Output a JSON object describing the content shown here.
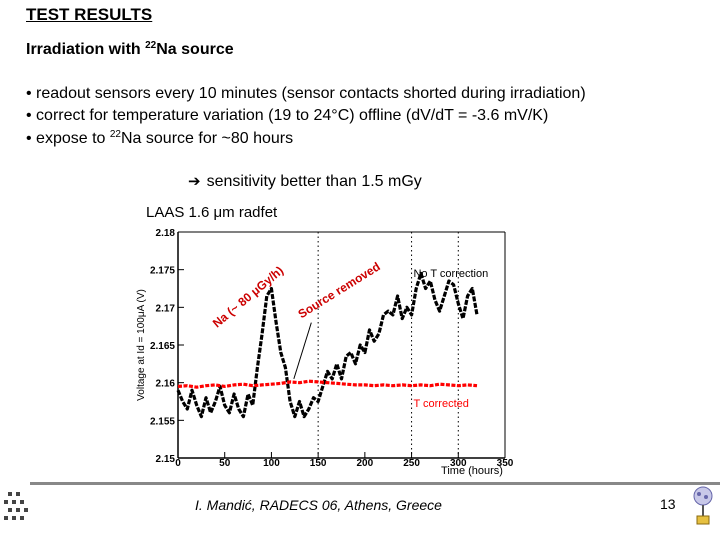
{
  "slide": {
    "title": "TEST RESULTS",
    "subtitle_prefix": "Irradiation with ",
    "subtitle_sup": "22",
    "subtitle_suffix": "Na source",
    "bullets": [
      "• readout sensors every 10 minutes (sensor contacts shorted during irradiation)",
      "• correct for temperature variation (19 to 24°C) offline (dV/dT = -3.6 mV/K)",
      "• expose to "
    ],
    "bullet3_sup": "22",
    "bullet3_suffix": "Na source for ~80 hours",
    "conclusion": "sensitivity better than 1.5 mGy",
    "chart_caption": "LAAS 1.6 μm radfet",
    "footer": "I. Mandić, RADECS 06, Athens, Greece",
    "page_number": "13"
  },
  "chart_data": {
    "type": "line",
    "title": "LAAS 1.6 μm radfet",
    "xlabel": "Time (hours)",
    "ylabel": "Voltage at Id = 100μA (V)",
    "xlim": [
      0,
      350
    ],
    "ylim": [
      2.15,
      2.18
    ],
    "xticks": [
      0,
      50,
      100,
      150,
      200,
      250,
      300,
      350
    ],
    "yticks": [
      2.15,
      2.155,
      2.16,
      2.165,
      2.17,
      2.175,
      2.18
    ],
    "ytick_labels": [
      "2.15",
      "2.155",
      "2.16",
      "2.165",
      "2.17",
      "2.175",
      "2.18"
    ],
    "vlines": [
      150,
      250,
      300
    ],
    "annotations": [
      {
        "text": "Na (~ 80 μGy/h)",
        "x": 45,
        "y": 2.1675
      },
      {
        "text": "Source removed",
        "x": 132,
        "y": 2.1685
      },
      {
        "text": "No T correction",
        "x": 252,
        "y": 2.174
      },
      {
        "text": "T corrected",
        "x": 252,
        "y": 2.1568
      }
    ],
    "series": [
      {
        "name": "No T correction",
        "color": "#000000",
        "x": [
          0,
          5,
          10,
          15,
          20,
          25,
          30,
          35,
          40,
          45,
          50,
          55,
          60,
          65,
          70,
          75,
          80,
          85,
          90,
          95,
          100,
          105,
          110,
          115,
          120,
          125,
          130,
          135,
          140,
          145,
          150,
          155,
          160,
          165,
          170,
          175,
          180,
          185,
          190,
          195,
          200,
          205,
          210,
          215,
          220,
          225,
          230,
          235,
          240,
          245,
          250,
          255,
          260,
          265,
          270,
          275,
          280,
          285,
          290,
          295,
          300,
          305,
          310,
          315,
          320
        ],
        "y": [
          2.159,
          2.1575,
          2.1565,
          2.159,
          2.157,
          2.1555,
          2.158,
          2.156,
          2.1575,
          2.1595,
          2.157,
          2.156,
          2.1585,
          2.1565,
          2.1555,
          2.1585,
          2.157,
          2.162,
          2.1665,
          2.1715,
          2.1725,
          2.168,
          2.164,
          2.162,
          2.1575,
          2.1555,
          2.1575,
          2.1555,
          2.1565,
          2.158,
          2.1575,
          2.1595,
          2.1615,
          2.1605,
          2.1625,
          2.1605,
          2.1635,
          2.164,
          2.1625,
          2.165,
          2.164,
          2.167,
          2.1655,
          2.1665,
          2.169,
          2.1695,
          2.169,
          2.1715,
          2.1685,
          2.17,
          2.169,
          2.1725,
          2.1745,
          2.1725,
          2.1735,
          2.171,
          2.1695,
          2.1715,
          2.1735,
          2.173,
          2.1705,
          2.1685,
          2.1715,
          2.1725,
          2.169
        ]
      },
      {
        "name": "T corrected",
        "color": "#ff0000",
        "x": [
          0,
          10,
          20,
          30,
          40,
          50,
          60,
          70,
          80,
          90,
          100,
          110,
          120,
          130,
          140,
          150,
          160,
          170,
          180,
          190,
          200,
          210,
          220,
          230,
          240,
          250,
          260,
          270,
          280,
          290,
          300,
          310,
          320
        ],
        "y": [
          2.1595,
          2.1596,
          2.1594,
          2.1596,
          2.1597,
          2.1595,
          2.1597,
          2.1598,
          2.1596,
          2.1597,
          2.1598,
          2.1599,
          2.1601,
          2.16,
          2.1602,
          2.1601,
          2.16,
          2.1599,
          2.1598,
          2.1597,
          2.1597,
          2.1596,
          2.1597,
          2.1596,
          2.1597,
          2.1596,
          2.1597,
          2.1596,
          2.1598,
          2.1597,
          2.1596,
          2.1597,
          2.1596
        ]
      }
    ]
  }
}
